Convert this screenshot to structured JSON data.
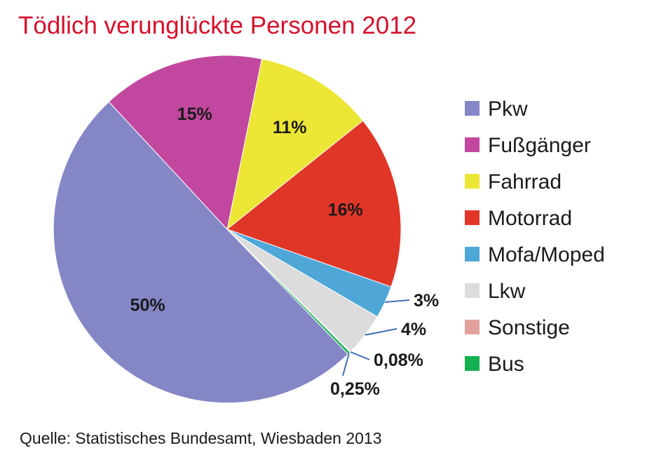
{
  "chart_data": {
    "type": "pie",
    "title": "Tödlich verunglückte Personen 2012",
    "source": "Quelle:  Statistisches Bundesamt, Wiesbaden 2013",
    "legend_position": "right",
    "slices": [
      {
        "name": "Pkw",
        "value": 50,
        "label": "50%",
        "color": "#8486c6"
      },
      {
        "name": "Fußgänger",
        "value": 15,
        "label": "15%",
        "color": "#c2489f"
      },
      {
        "name": "Fahrrad",
        "value": 11,
        "label": "11%",
        "color": "#ece634"
      },
      {
        "name": "Motorrad",
        "value": 16,
        "label": "16%",
        "color": "#e03628"
      },
      {
        "name": "Mofa/Moped",
        "value": 3,
        "label": "3%",
        "color": "#4fa7d8"
      },
      {
        "name": "Lkw",
        "value": 4,
        "label": "4%",
        "color": "#dcdcdc"
      },
      {
        "name": "Sonstige",
        "value": 0.08,
        "label": "0,08%",
        "color": "#e2a09a"
      },
      {
        "name": "Bus",
        "value": 0.25,
        "label": "0,25%",
        "color": "#13b051"
      }
    ]
  }
}
